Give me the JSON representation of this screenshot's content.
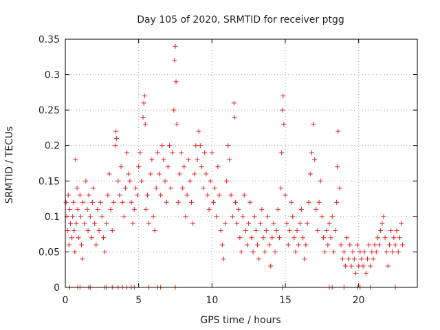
{
  "chart_data": {
    "type": "scatter",
    "title": "Day 105 of 2020, SRMTID for receiver ptgg",
    "xlabel": "GPS time / hours",
    "ylabel": "SRMTID / TECUs",
    "xlim": [
      0,
      24
    ],
    "ylim": [
      0,
      0.35
    ],
    "x_ticks": [
      "0",
      "5",
      "10",
      "15",
      "20"
    ],
    "x_tick_values": [
      0,
      5,
      10,
      15,
      20
    ],
    "y_ticks": [
      "0",
      "0.05",
      "0.1",
      "0.15",
      "0.2",
      "0.25",
      "0.3",
      "0.35"
    ],
    "y_tick_values": [
      0,
      0.05,
      0.1,
      0.15,
      0.2,
      0.25,
      0.3,
      0.35
    ],
    "grid": true,
    "marker": "plus",
    "color": "#e41a1c",
    "series": [
      {
        "name": "SRMTID",
        "points": [
          [
            0.05,
            0.12
          ],
          [
            0.1,
            0.1
          ],
          [
            0.15,
            0.08
          ],
          [
            0.2,
            0.13
          ],
          [
            0.25,
            0.06
          ],
          [
            0.3,
            0.11
          ],
          [
            0.35,
            0.09
          ],
          [
            0.45,
            0.07
          ],
          [
            0.5,
            0.1
          ],
          [
            0.55,
            0.12
          ],
          [
            0.6,
            0.08
          ],
          [
            0.65,
            0.05
          ],
          [
            0.7,
            0.18
          ],
          [
            0.75,
            0.09
          ],
          [
            0.8,
            0.14
          ],
          [
            0.85,
            0.11
          ],
          [
            0.9,
            0.07
          ],
          [
            1.0,
            0.13
          ],
          [
            1.05,
            0.1
          ],
          [
            1.1,
            0.06
          ],
          [
            1.15,
            0.04
          ],
          [
            1.2,
            0.12
          ],
          [
            1.3,
            0.09
          ],
          [
            1.4,
            0.15
          ],
          [
            1.5,
            0.11
          ],
          [
            1.55,
            0.08
          ],
          [
            1.6,
            0.13
          ],
          [
            1.7,
            0.1
          ],
          [
            1.8,
            0.07
          ],
          [
            1.85,
            0.12
          ],
          [
            1.9,
            0.14
          ],
          [
            2.0,
            0.09
          ],
          [
            2.1,
            0.06
          ],
          [
            2.2,
            0.11
          ],
          [
            2.3,
            0.08
          ],
          [
            2.4,
            0.12
          ],
          [
            2.5,
            0.1
          ],
          [
            2.6,
            0.07
          ],
          [
            2.7,
            0.05
          ],
          [
            2.8,
            0.09
          ],
          [
            2.9,
            0.13
          ],
          [
            3.0,
            0.16
          ],
          [
            3.1,
            0.11
          ],
          [
            3.2,
            0.08
          ],
          [
            3.3,
            0.12
          ],
          [
            3.4,
            0.2
          ],
          [
            3.45,
            0.22
          ],
          [
            3.5,
            0.21
          ],
          [
            3.6,
            0.15
          ],
          [
            3.7,
            0.13
          ],
          [
            3.8,
            0.17
          ],
          [
            3.9,
            0.12
          ],
          [
            4.0,
            0.1
          ],
          [
            4.1,
            0.14
          ],
          [
            4.2,
            0.19
          ],
          [
            4.3,
            0.16
          ],
          [
            4.4,
            0.15
          ],
          [
            4.5,
            0.12
          ],
          [
            4.6,
            0.09
          ],
          [
            4.7,
            0.11
          ],
          [
            4.8,
            0.14
          ],
          [
            4.9,
            0.13
          ],
          [
            5.0,
            0.17
          ],
          [
            5.1,
            0.19
          ],
          [
            5.2,
            0.15
          ],
          [
            5.3,
            0.24
          ],
          [
            5.35,
            0.26
          ],
          [
            5.4,
            0.27
          ],
          [
            5.45,
            0.23
          ],
          [
            5.5,
            0.11
          ],
          [
            5.6,
            0.13
          ],
          [
            5.7,
            0.09
          ],
          [
            5.8,
            0.16
          ],
          [
            5.9,
            0.18
          ],
          [
            6.0,
            0.1
          ],
          [
            6.1,
            0.08
          ],
          [
            6.2,
            0.14
          ],
          [
            6.3,
            0.19
          ],
          [
            6.4,
            0.16
          ],
          [
            6.5,
            0.13
          ],
          [
            6.6,
            0.2
          ],
          [
            6.7,
            0.18
          ],
          [
            6.8,
            0.15
          ],
          [
            6.9,
            0.12
          ],
          [
            7.0,
            0.17
          ],
          [
            7.1,
            0.2
          ],
          [
            7.2,
            0.14
          ],
          [
            7.3,
            0.19
          ],
          [
            7.4,
            0.25
          ],
          [
            7.45,
            0.32
          ],
          [
            7.5,
            0.34
          ],
          [
            7.55,
            0.29
          ],
          [
            7.6,
            0.23
          ],
          [
            7.7,
            0.12
          ],
          [
            7.8,
            0.16
          ],
          [
            7.9,
            0.19
          ],
          [
            8.0,
            0.14
          ],
          [
            8.1,
            0.17
          ],
          [
            8.2,
            0.1
          ],
          [
            8.3,
            0.13
          ],
          [
            8.4,
            0.18
          ],
          [
            8.5,
            0.15
          ],
          [
            8.6,
            0.12
          ],
          [
            8.7,
            0.09
          ],
          [
            8.8,
            0.16
          ],
          [
            8.9,
            0.2
          ],
          [
            9.0,
            0.18
          ],
          [
            9.1,
            0.22
          ],
          [
            9.2,
            0.2
          ],
          [
            9.3,
            0.17
          ],
          [
            9.4,
            0.14
          ],
          [
            9.5,
            0.19
          ],
          [
            9.6,
            0.16
          ],
          [
            9.7,
            0.13
          ],
          [
            9.8,
            0.11
          ],
          [
            9.9,
            0.15
          ],
          [
            10.0,
            0.19
          ],
          [
            10.1,
            0.12
          ],
          [
            10.2,
            0.14
          ],
          [
            10.3,
            0.1
          ],
          [
            10.4,
            0.17
          ],
          [
            10.5,
            0.13
          ],
          [
            10.6,
            0.08
          ],
          [
            10.7,
            0.06
          ],
          [
            10.8,
            0.04
          ],
          [
            10.9,
            0.09
          ],
          [
            11.0,
            0.15
          ],
          [
            11.1,
            0.2
          ],
          [
            11.2,
            0.18
          ],
          [
            11.3,
            0.13
          ],
          [
            11.4,
            0.1
          ],
          [
            11.5,
            0.26
          ],
          [
            11.55,
            0.24
          ],
          [
            11.6,
            0.12
          ],
          [
            11.7,
            0.09
          ],
          [
            11.8,
            0.11
          ],
          [
            11.9,
            0.07
          ],
          [
            12.0,
            0.05
          ],
          [
            12.1,
            0.1
          ],
          [
            12.2,
            0.13
          ],
          [
            12.3,
            0.08
          ],
          [
            12.4,
            0.06
          ],
          [
            12.5,
            0.09
          ],
          [
            12.6,
            0.12
          ],
          [
            12.7,
            0.07
          ],
          [
            12.8,
            0.05
          ],
          [
            12.9,
            0.1
          ],
          [
            13.0,
            0.08
          ],
          [
            13.1,
            0.06
          ],
          [
            13.2,
            0.04
          ],
          [
            13.3,
            0.09
          ],
          [
            13.4,
            0.11
          ],
          [
            13.5,
            0.07
          ],
          [
            13.6,
            0.05
          ],
          [
            13.7,
            0.08
          ],
          [
            13.8,
            0.1
          ],
          [
            13.9,
            0.06
          ],
          [
            14.0,
            0.03
          ],
          [
            14.1,
            0.07
          ],
          [
            14.2,
            0.09
          ],
          [
            14.3,
            0.05
          ],
          [
            14.4,
            0.08
          ],
          [
            14.5,
            0.11
          ],
          [
            14.6,
            0.07
          ],
          [
            14.7,
            0.14
          ],
          [
            14.75,
            0.19
          ],
          [
            14.8,
            0.25
          ],
          [
            14.85,
            0.27
          ],
          [
            14.9,
            0.23
          ],
          [
            15.0,
            0.13
          ],
          [
            15.1,
            0.09
          ],
          [
            15.2,
            0.06
          ],
          [
            15.3,
            0.08
          ],
          [
            15.4,
            0.12
          ],
          [
            15.5,
            0.1
          ],
          [
            15.6,
            0.07
          ],
          [
            15.7,
            0.05
          ],
          [
            15.8,
            0.08
          ],
          [
            15.9,
            0.06
          ],
          [
            16.0,
            0.09
          ],
          [
            16.1,
            0.11
          ],
          [
            16.2,
            0.07
          ],
          [
            16.3,
            0.04
          ],
          [
            16.4,
            0.06
          ],
          [
            16.5,
            0.09
          ],
          [
            16.6,
            0.12
          ],
          [
            16.7,
            0.16
          ],
          [
            16.8,
            0.19
          ],
          [
            16.9,
            0.23
          ],
          [
            17.0,
            0.18
          ],
          [
            17.1,
            0.11
          ],
          [
            17.2,
            0.08
          ],
          [
            17.3,
            0.12
          ],
          [
            17.4,
            0.15
          ],
          [
            17.5,
            0.1
          ],
          [
            17.6,
            0.07
          ],
          [
            17.7,
            0.05
          ],
          [
            17.8,
            0.08
          ],
          [
            17.9,
            0.06
          ],
          [
            18.0,
            0.09
          ],
          [
            18.1,
            0.07
          ],
          [
            18.2,
            0.1
          ],
          [
            18.3,
            0.05
          ],
          [
            18.4,
            0.08
          ],
          [
            18.5,
            0.12
          ],
          [
            18.55,
            0.17
          ],
          [
            18.6,
            0.22
          ],
          [
            18.7,
            0.14
          ],
          [
            18.8,
            0.06
          ],
          [
            18.9,
            0.04
          ],
          [
            19.0,
            0.05
          ],
          [
            19.1,
            0.03
          ],
          [
            19.2,
            0.07
          ],
          [
            19.3,
            0.04
          ],
          [
            19.4,
            0.06
          ],
          [
            19.5,
            0.03
          ],
          [
            19.6,
            0.05
          ],
          [
            19.7,
            0.04
          ],
          [
            19.8,
            0.02
          ],
          [
            19.9,
            0.06
          ],
          [
            20.0,
            0.03
          ],
          [
            20.1,
            0.05
          ],
          [
            20.2,
            0.04
          ],
          [
            20.3,
            0.03
          ],
          [
            20.4,
            0.05
          ],
          [
            20.5,
            0.02
          ],
          [
            20.6,
            0.04
          ],
          [
            20.7,
            0.06
          ],
          [
            20.8,
            0.03
          ],
          [
            20.9,
            0.05
          ],
          [
            21.0,
            0.04
          ],
          [
            21.1,
            0.06
          ],
          [
            21.2,
            0.05
          ],
          [
            21.3,
            0.07
          ],
          [
            21.4,
            0.06
          ],
          [
            21.5,
            0.08
          ],
          [
            21.6,
            0.09
          ],
          [
            21.7,
            0.1
          ],
          [
            21.8,
            0.07
          ],
          [
            21.9,
            0.05
          ],
          [
            22.0,
            0.03
          ],
          [
            22.1,
            0.06
          ],
          [
            22.2,
            0.08
          ],
          [
            22.3,
            0.05
          ],
          [
            22.4,
            0.07
          ],
          [
            22.5,
            0.06
          ],
          [
            22.6,
            0.08
          ],
          [
            22.7,
            0.05
          ],
          [
            22.8,
            0.07
          ],
          [
            22.9,
            0.09
          ],
          [
            23.0,
            0.06
          ],
          [
            0.3,
            0.0
          ],
          [
            0.85,
            0.0
          ],
          [
            1.0,
            0.0
          ],
          [
            1.6,
            0.0
          ],
          [
            1.7,
            0.0
          ],
          [
            2.7,
            0.0
          ],
          [
            2.8,
            0.0
          ],
          [
            3.2,
            0.0
          ],
          [
            3.6,
            0.0
          ],
          [
            3.9,
            0.0
          ],
          [
            4.2,
            0.0
          ],
          [
            4.5,
            0.0
          ],
          [
            4.7,
            0.0
          ],
          [
            5.7,
            0.0
          ],
          [
            6.3,
            0.0
          ],
          [
            6.5,
            0.0
          ],
          [
            7.5,
            0.0
          ],
          [
            14.8,
            0.0
          ],
          [
            18.0,
            0.0
          ],
          [
            18.2,
            0.0
          ],
          [
            19.0,
            0.0
          ],
          [
            19.9,
            0.0
          ],
          [
            20.1,
            0.0
          ],
          [
            20.8,
            0.0
          ],
          [
            22.5,
            0.0
          ]
        ]
      }
    ]
  }
}
